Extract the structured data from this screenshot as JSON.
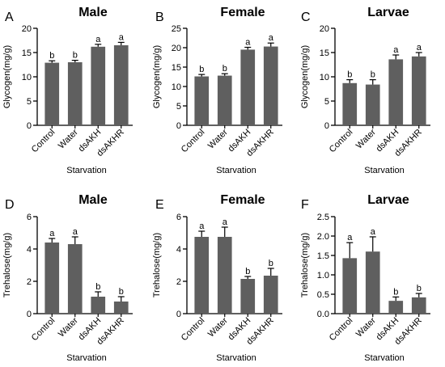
{
  "colors": {
    "bar": "#5f5f5f",
    "axis": "#000000"
  },
  "chart_data": [
    {
      "type": "bar",
      "panel_label": "A",
      "title": "Male",
      "ylabel": "Glycogen(mg/g)",
      "xlabel": "Starvation",
      "categories": [
        "Control",
        "Water",
        "dsAKH",
        "dsAKHR"
      ],
      "values": [
        12.9,
        13.0,
        16.2,
        16.5
      ],
      "errors": [
        0.4,
        0.4,
        0.5,
        0.6
      ],
      "letters": [
        "b",
        "b",
        "a",
        "a"
      ],
      "ylim": [
        0,
        20
      ],
      "yticks": [
        "0",
        "5",
        "10",
        "15",
        "20"
      ]
    },
    {
      "type": "bar",
      "panel_label": "B",
      "title": "Female",
      "ylabel": "Glycogen(mg/g)",
      "xlabel": "Starvation",
      "categories": [
        "Control",
        "Water",
        "dsAKH",
        "dsAKHR"
      ],
      "values": [
        12.6,
        12.8,
        19.5,
        20.3
      ],
      "errors": [
        0.5,
        0.5,
        0.6,
        0.9
      ],
      "letters": [
        "b",
        "b",
        "a",
        "a"
      ],
      "ylim": [
        0,
        25
      ],
      "yticks": [
        "0",
        "5",
        "10",
        "15",
        "20",
        "25"
      ]
    },
    {
      "type": "bar",
      "panel_label": "C",
      "title": "Larvae",
      "ylabel": "Glycogen(mg/g)",
      "xlabel": "Starvation",
      "categories": [
        "Control",
        "Water",
        "dsAKH",
        "dsAKHR"
      ],
      "values": [
        8.7,
        8.4,
        13.6,
        14.2
      ],
      "errors": [
        0.7,
        1.0,
        0.9,
        0.8
      ],
      "letters": [
        "b",
        "b",
        "a",
        "a"
      ],
      "ylim": [
        0,
        20
      ],
      "yticks": [
        "0",
        "5",
        "10",
        "15",
        "20"
      ]
    },
    {
      "type": "bar",
      "panel_label": "D",
      "title": "Male",
      "ylabel": "Trehalose(mg/g)",
      "xlabel": "Starvation",
      "categories": [
        "Control",
        "Water",
        "dsAKH",
        "dsAKHR"
      ],
      "values": [
        4.4,
        4.3,
        1.05,
        0.75
      ],
      "errors": [
        0.25,
        0.45,
        0.3,
        0.3
      ],
      "letters": [
        "a",
        "a",
        "b",
        "b"
      ],
      "ylim": [
        0,
        6
      ],
      "yticks": [
        "0",
        "2",
        "4",
        "6"
      ]
    },
    {
      "type": "bar",
      "panel_label": "E",
      "title": "Female",
      "ylabel": "Trehalose(mg/g)",
      "xlabel": "Starvation",
      "categories": [
        "Control",
        "Water",
        "dsAKH",
        "dsAKHR"
      ],
      "values": [
        4.75,
        4.75,
        2.15,
        2.35
      ],
      "errors": [
        0.35,
        0.6,
        0.15,
        0.45
      ],
      "letters": [
        "a",
        "a",
        "b",
        "b"
      ],
      "ylim": [
        0,
        6
      ],
      "yticks": [
        "0",
        "2",
        "4",
        "6"
      ]
    },
    {
      "type": "bar",
      "panel_label": "F",
      "title": "Larvae",
      "ylabel": "Trehalose(mg/g)",
      "xlabel": "Starvation",
      "categories": [
        "Control",
        "Water",
        "dsAKH",
        "dsAKHR"
      ],
      "values": [
        1.43,
        1.6,
        0.33,
        0.42
      ],
      "errors": [
        0.4,
        0.38,
        0.1,
        0.1
      ],
      "letters": [
        "a",
        "a",
        "b",
        "b"
      ],
      "ylim": [
        0,
        2.5
      ],
      "yticks": [
        "0.0",
        "0.5",
        "1.0",
        "1.5",
        "2.0",
        "2.5"
      ]
    }
  ]
}
